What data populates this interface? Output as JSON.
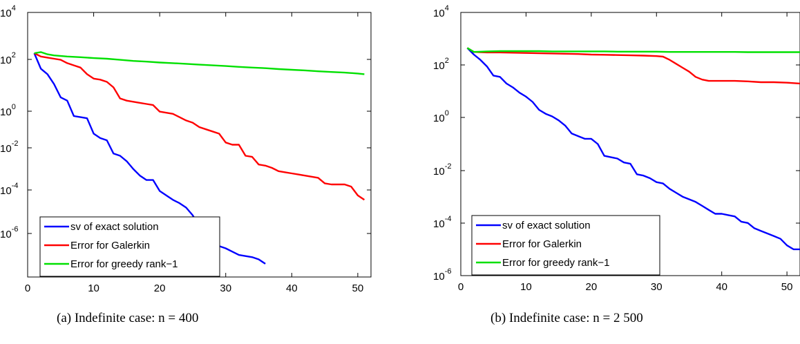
{
  "chart_data": [
    {
      "type": "line",
      "caption": "(a) Indefinite case: n = 400",
      "x_ticks": [
        0,
        10,
        20,
        30,
        40,
        50
      ],
      "y_ticks": [
        {
          "base": "10",
          "exp": "4"
        },
        {
          "base": "10",
          "exp": "2"
        },
        {
          "base": "10",
          "exp": "0"
        },
        {
          "base": "10",
          "exp": "-2"
        },
        {
          "base": "10",
          "exp": "-4"
        },
        {
          "base": "10",
          "exp": "-6"
        }
      ],
      "xlim": [
        0,
        52
      ],
      "y_log_range": [
        -8,
        4
      ],
      "yscale": "log",
      "legend_location": "lower-left",
      "series": [
        {
          "name": "sv of exact solution",
          "color": "#0000ff",
          "x": [
            1,
            2,
            3,
            4,
            5,
            6,
            7,
            8,
            9,
            10,
            11,
            12,
            13,
            14,
            15,
            16,
            17,
            18,
            19,
            20,
            21,
            22,
            23,
            24,
            25,
            26,
            27,
            28,
            29,
            30,
            31,
            32,
            33,
            34,
            35,
            36
          ],
          "log10_y": [
            2.15,
            1.45,
            1.2,
            0.75,
            0.15,
            0.0,
            -0.7,
            -0.75,
            -0.8,
            -1.5,
            -1.7,
            -1.8,
            -2.4,
            -2.5,
            -2.75,
            -3.1,
            -3.4,
            -3.6,
            -3.6,
            -4.1,
            -4.3,
            -4.5,
            -4.65,
            -4.85,
            -5.2,
            -5.7,
            -6.1,
            -6.3,
            -6.6,
            -6.7,
            -6.85,
            -7.0,
            -7.05,
            -7.1,
            -7.2,
            -7.4
          ]
        },
        {
          "name": "Error for Galerkin",
          "color": "#ff0000",
          "x": [
            1,
            2,
            3,
            4,
            5,
            6,
            7,
            8,
            9,
            10,
            11,
            12,
            13,
            14,
            15,
            16,
            17,
            18,
            19,
            20,
            21,
            22,
            23,
            24,
            25,
            26,
            27,
            28,
            29,
            30,
            31,
            32,
            33,
            34,
            35,
            36,
            37,
            38,
            39,
            40,
            41,
            42,
            43,
            44,
            45,
            46,
            47,
            48,
            49,
            50,
            51
          ],
          "log10_y": [
            2.15,
            2.0,
            1.95,
            1.9,
            1.85,
            1.7,
            1.6,
            1.5,
            1.2,
            1.0,
            0.95,
            0.85,
            0.6,
            0.1,
            0.0,
            -0.05,
            -0.1,
            -0.15,
            -0.2,
            -0.5,
            -0.55,
            -0.6,
            -0.75,
            -0.9,
            -1.0,
            -1.2,
            -1.3,
            -1.4,
            -1.5,
            -1.9,
            -2.0,
            -2.0,
            -2.5,
            -2.55,
            -2.9,
            -2.95,
            -3.05,
            -3.2,
            -3.25,
            -3.3,
            -3.35,
            -3.4,
            -3.45,
            -3.5,
            -3.75,
            -3.8,
            -3.8,
            -3.8,
            -3.9,
            -4.3,
            -4.5
          ]
        },
        {
          "name": "Error for greedy rank−1",
          "color": "#00e000",
          "x": [
            1,
            2,
            3,
            4,
            6,
            8,
            10,
            12,
            14,
            16,
            18,
            20,
            22,
            24,
            26,
            28,
            30,
            32,
            34,
            36,
            38,
            40,
            42,
            44,
            46,
            48,
            50,
            51
          ],
          "log10_y": [
            2.15,
            2.2,
            2.1,
            2.05,
            2.0,
            1.97,
            1.93,
            1.9,
            1.85,
            1.8,
            1.77,
            1.73,
            1.7,
            1.67,
            1.63,
            1.6,
            1.57,
            1.53,
            1.5,
            1.47,
            1.43,
            1.4,
            1.37,
            1.33,
            1.3,
            1.27,
            1.23,
            1.2
          ]
        }
      ]
    },
    {
      "type": "line",
      "caption": "(b) Indefinite case: n = 2 500",
      "x_ticks": [
        0,
        10,
        20,
        30,
        40,
        50
      ],
      "y_ticks": [
        {
          "base": "10",
          "exp": "4"
        },
        {
          "base": "10",
          "exp": "2"
        },
        {
          "base": "10",
          "exp": "0"
        },
        {
          "base": "10",
          "exp": "-2"
        },
        {
          "base": "10",
          "exp": "-4"
        },
        {
          "base": "10",
          "exp": "-6"
        }
      ],
      "xlim": [
        0,
        52
      ],
      "y_log_range": [
        -6,
        4
      ],
      "yscale": "log",
      "legend_location": "lower-left",
      "series": [
        {
          "name": "sv of exact solution",
          "color": "#0000ff",
          "x": [
            1,
            2,
            3,
            4,
            5,
            6,
            7,
            8,
            9,
            10,
            11,
            12,
            13,
            14,
            15,
            16,
            17,
            18,
            19,
            20,
            21,
            22,
            23,
            24,
            25,
            26,
            27,
            28,
            29,
            30,
            31,
            32,
            33,
            34,
            35,
            36,
            37,
            38,
            39,
            40,
            41,
            42,
            43,
            44,
            45,
            46,
            47,
            48,
            49,
            50,
            51,
            52
          ],
          "log10_y": [
            2.65,
            2.4,
            2.2,
            1.95,
            1.6,
            1.55,
            1.3,
            1.15,
            0.95,
            0.8,
            0.6,
            0.3,
            0.15,
            0.05,
            -0.1,
            -0.3,
            -0.6,
            -0.7,
            -0.8,
            -0.8,
            -1.0,
            -1.45,
            -1.5,
            -1.55,
            -1.7,
            -1.75,
            -2.15,
            -2.2,
            -2.3,
            -2.45,
            -2.5,
            -2.7,
            -2.85,
            -3.0,
            -3.1,
            -3.2,
            -3.35,
            -3.5,
            -3.65,
            -3.65,
            -3.7,
            -3.75,
            -3.95,
            -4.0,
            -4.2,
            -4.3,
            -4.4,
            -4.5,
            -4.6,
            -4.85,
            -5.0,
            -5.0
          ]
        },
        {
          "name": "Error for Galerkin",
          "color": "#ff0000",
          "x": [
            1,
            2,
            4,
            6,
            8,
            10,
            12,
            14,
            16,
            18,
            20,
            22,
            24,
            26,
            28,
            30,
            31,
            32,
            33,
            34,
            35,
            36,
            37,
            38,
            40,
            42,
            44,
            46,
            48,
            50,
            52
          ],
          "log10_y": [
            2.65,
            2.5,
            2.48,
            2.48,
            2.47,
            2.46,
            2.45,
            2.44,
            2.43,
            2.42,
            2.4,
            2.39,
            2.38,
            2.37,
            2.36,
            2.34,
            2.32,
            2.2,
            2.05,
            1.9,
            1.75,
            1.55,
            1.45,
            1.4,
            1.4,
            1.4,
            1.38,
            1.35,
            1.35,
            1.33,
            1.3
          ]
        },
        {
          "name": "Error for greedy rank−1",
          "color": "#00e000",
          "x": [
            1,
            2,
            4,
            6,
            8,
            10,
            12,
            14,
            16,
            18,
            20,
            22,
            24,
            26,
            28,
            30,
            32,
            34,
            36,
            38,
            40,
            42,
            44,
            46,
            48,
            50,
            52
          ],
          "log10_y": [
            2.65,
            2.5,
            2.52,
            2.53,
            2.53,
            2.53,
            2.53,
            2.52,
            2.52,
            2.52,
            2.52,
            2.52,
            2.51,
            2.51,
            2.51,
            2.51,
            2.5,
            2.5,
            2.5,
            2.5,
            2.5,
            2.5,
            2.49,
            2.49,
            2.49,
            2.49,
            2.49
          ]
        }
      ]
    }
  ]
}
